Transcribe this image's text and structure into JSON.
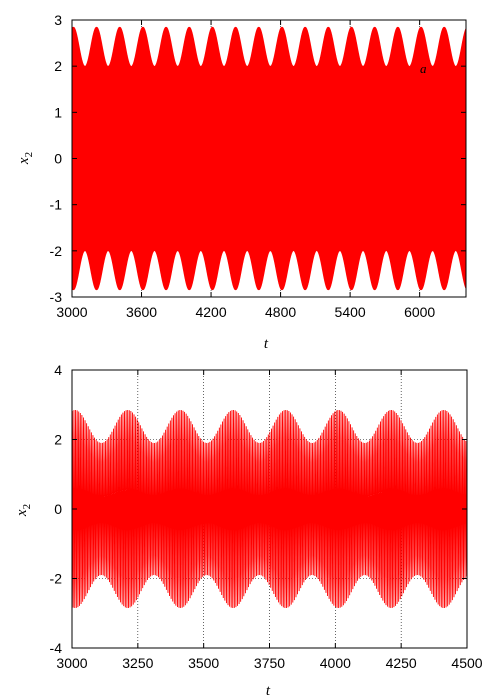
{
  "chart_data": [
    {
      "type": "line",
      "xlabel": "t",
      "ylabel": "x",
      "ylabel_subscript": "2",
      "annotation": "a",
      "xlim": [
        3000,
        6400
      ],
      "ylim": [
        -3,
        3
      ],
      "x_ticks": [
        3000,
        3600,
        4200,
        4800,
        5400,
        6000
      ],
      "y_ticks": [
        -3,
        -2,
        -1,
        0,
        1,
        2,
        3
      ],
      "grid": true,
      "series": [
        {
          "color": "#ff0000",
          "signal": {
            "kind": "modulated-oscillation",
            "carrier_period": 1.5,
            "envelope_period": 200,
            "envelope_min": 2.0,
            "envelope_max": 2.85
          }
        }
      ]
    },
    {
      "type": "line",
      "xlabel": "t",
      "ylabel": "x",
      "ylabel_subscript": "2",
      "xlim": [
        3000,
        4500
      ],
      "ylim": [
        -4,
        4
      ],
      "x_ticks": [
        3000,
        3250,
        3500,
        3750,
        4000,
        4250,
        4500
      ],
      "y_ticks": [
        -4,
        -2,
        0,
        2,
        4
      ],
      "grid": true,
      "series": [
        {
          "color": "#ff0000",
          "signal": {
            "kind": "modulated-oscillation",
            "carrier_period": 6,
            "envelope_period": 200,
            "envelope_min": 1.9,
            "envelope_max": 2.85
          }
        }
      ]
    }
  ]
}
